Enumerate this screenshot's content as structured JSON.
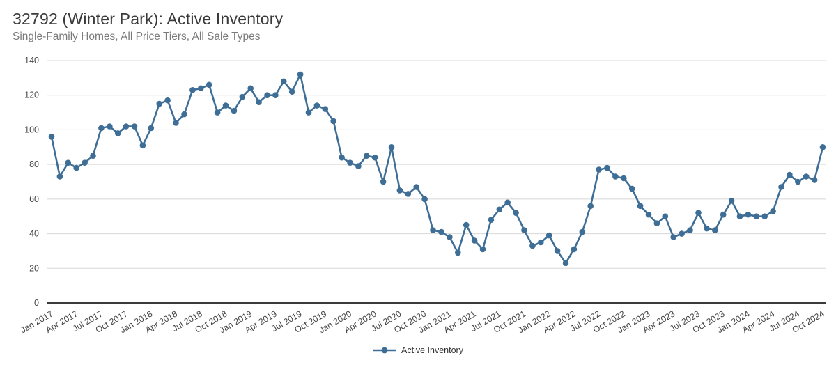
{
  "header": {
    "title": "32792 (Winter Park): Active Inventory",
    "subtitle": "Single-Family Homes, All Price Tiers, All Sale Types"
  },
  "legend": {
    "label": "Active Inventory"
  },
  "colors": {
    "series": "#3e6e96",
    "gridline": "#d8d8d8",
    "axis_line": "#1f1f1f",
    "title_text": "#3a3a3a",
    "subtitle_text": "#7b7b7b",
    "tick_text": "#454545"
  },
  "chart_data": {
    "type": "line",
    "title": "32792 (Winter Park): Active Inventory",
    "subtitle": "Single-Family Homes, All Price Tiers, All Sale Types",
    "series_name": "Active Inventory",
    "marker": "circle",
    "grid": "horizontal",
    "legend_position": "bottom-center",
    "ylim": [
      0,
      140
    ],
    "y_ticks": [
      0,
      20,
      40,
      60,
      80,
      100,
      120,
      140
    ],
    "x_tick_every": 3,
    "x_tick_labels": [
      "Jan 2017",
      "Apr 2017",
      "Jul 2017",
      "Oct 2017",
      "Jan 2018",
      "Apr 2018",
      "Jul 2018",
      "Oct 2018",
      "Jan 2019",
      "Apr 2019",
      "Jul 2019",
      "Oct 2019",
      "Jan 2020",
      "Apr 2020",
      "Jul 2020",
      "Oct 2020",
      "Jan 2021",
      "Apr 2021",
      "Jul 2021",
      "Oct 2021",
      "Jan 2022",
      "Apr 2022",
      "Jul 2022",
      "Oct 2022",
      "Jan 2023",
      "Apr 2023",
      "Jul 2023",
      "Oct 2023",
      "Jan 2024",
      "Apr 2024",
      "Jul 2024",
      "Oct 2024"
    ],
    "categories": [
      "Jan 2017",
      "Feb 2017",
      "Mar 2017",
      "Apr 2017",
      "May 2017",
      "Jun 2017",
      "Jul 2017",
      "Aug 2017",
      "Sep 2017",
      "Oct 2017",
      "Nov 2017",
      "Dec 2017",
      "Jan 2018",
      "Feb 2018",
      "Mar 2018",
      "Apr 2018",
      "May 2018",
      "Jun 2018",
      "Jul 2018",
      "Aug 2018",
      "Sep 2018",
      "Oct 2018",
      "Nov 2018",
      "Dec 2018",
      "Jan 2019",
      "Feb 2019",
      "Mar 2019",
      "Apr 2019",
      "May 2019",
      "Jun 2019",
      "Jul 2019",
      "Aug 2019",
      "Sep 2019",
      "Oct 2019",
      "Nov 2019",
      "Dec 2019",
      "Jan 2020",
      "Feb 2020",
      "Mar 2020",
      "Apr 2020",
      "May 2020",
      "Jun 2020",
      "Jul 2020",
      "Aug 2020",
      "Sep 2020",
      "Oct 2020",
      "Nov 2020",
      "Dec 2020",
      "Jan 2021",
      "Feb 2021",
      "Mar 2021",
      "Apr 2021",
      "May 2021",
      "Jun 2021",
      "Jul 2021",
      "Aug 2021",
      "Sep 2021",
      "Oct 2021",
      "Nov 2021",
      "Dec 2021",
      "Jan 2022",
      "Feb 2022",
      "Mar 2022",
      "Apr 2022",
      "May 2022",
      "Jun 2022",
      "Jul 2022",
      "Aug 2022",
      "Sep 2022",
      "Oct 2022",
      "Nov 2022",
      "Dec 2022",
      "Jan 2023",
      "Feb 2023",
      "Mar 2023",
      "Apr 2023",
      "May 2023",
      "Jun 2023",
      "Jul 2023",
      "Aug 2023",
      "Sep 2023",
      "Oct 2023",
      "Nov 2023",
      "Dec 2023",
      "Jan 2024",
      "Feb 2024",
      "Mar 2024",
      "Apr 2024",
      "May 2024",
      "Jun 2024",
      "Jul 2024",
      "Aug 2024",
      "Sep 2024",
      "Oct 2024"
    ],
    "values": [
      96,
      73,
      81,
      78,
      81,
      85,
      101,
      102,
      98,
      102,
      102,
      91,
      101,
      115,
      117,
      104,
      109,
      123,
      124,
      126,
      110,
      114,
      111,
      119,
      124,
      116,
      120,
      120,
      128,
      122,
      132,
      110,
      114,
      112,
      105,
      84,
      81,
      79,
      85,
      84,
      70,
      90,
      65,
      63,
      67,
      60,
      42,
      41,
      38,
      29,
      45,
      36,
      31,
      48,
      54,
      58,
      52,
      42,
      33,
      35,
      39,
      30,
      23,
      31,
      41,
      56,
      77,
      78,
      73,
      72,
      66,
      56,
      51,
      46,
      50,
      38,
      40,
      42,
      52,
      43,
      42,
      51,
      59,
      50,
      51,
      50,
      50,
      53,
      67,
      74,
      70,
      73,
      71,
      90
    ]
  }
}
